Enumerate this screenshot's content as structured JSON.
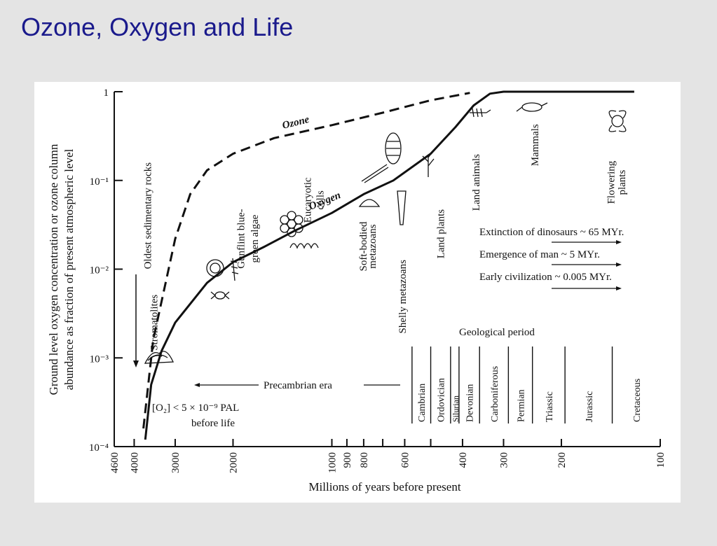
{
  "slide": {
    "title": "Ozone, Oxygen and Life"
  },
  "chart_data": {
    "type": "line",
    "title": "",
    "xlabel": "Millions of years before present",
    "ylabel_line1": "Ground level oxygen concentration or ozone column",
    "ylabel_line2": "abundance as fraction of present atmospheric level",
    "xscale": "log",
    "yscale": "log",
    "xlim": [
      4600,
      100
    ],
    "ylim": [
      0.0001,
      1
    ],
    "x_ticks": [
      4600,
      4000,
      3000,
      2000,
      1000,
      900,
      800,
      700,
      600,
      500,
      400,
      300,
      200,
      100
    ],
    "x_tick_labels": [
      "4600",
      "4000",
      "3000",
      "2000",
      "1000",
      "900",
      "800",
      "600",
      "400",
      "300",
      "200",
      "100"
    ],
    "y_tick_labels": [
      "1",
      "10⁻¹",
      "10⁻²",
      "10⁻³",
      "10⁻⁴"
    ],
    "series": [
      {
        "name": "Ozone",
        "style": "dashed",
        "color": "#111111",
        "points": [
          [
            3750,
            0.00016
          ],
          [
            3500,
            0.0016
          ],
          [
            3000,
            0.022
          ],
          [
            2700,
            0.07
          ],
          [
            2400,
            0.13
          ],
          [
            2000,
            0.2
          ],
          [
            1500,
            0.3
          ],
          [
            1000,
            0.42
          ],
          [
            700,
            0.58
          ],
          [
            500,
            0.8
          ],
          [
            380,
            0.97
          ]
        ]
      },
      {
        "name": "Oxygen",
        "style": "solid",
        "color": "#111111",
        "points": [
          [
            3700,
            0.00012
          ],
          [
            3550,
            0.0005
          ],
          [
            3300,
            0.0012
          ],
          [
            3000,
            0.0025
          ],
          [
            2400,
            0.007
          ],
          [
            2000,
            0.012
          ],
          [
            1600,
            0.018
          ],
          [
            1300,
            0.027
          ],
          [
            1000,
            0.043
          ],
          [
            800,
            0.07
          ],
          [
            650,
            0.1
          ],
          [
            500,
            0.2
          ],
          [
            420,
            0.4
          ],
          [
            370,
            0.7
          ],
          [
            330,
            0.95
          ],
          [
            300,
            1.0
          ],
          [
            120,
            1.0
          ]
        ]
      }
    ],
    "vertical_labels": [
      {
        "text": "Stromatolites",
        "x": 3400,
        "y": 0.0025
      },
      {
        "text": "Oldest sedimentary rocks",
        "x": 3550,
        "y": 0.04
      },
      {
        "text": "Gunflint blue-",
        "x": 1850,
        "y": 0.022
      },
      {
        "text": "green algae",
        "x": 1680,
        "y": 0.022
      },
      {
        "text": "Eucaryotic",
        "x": 1160,
        "y": 0.06
      },
      {
        "text": "cells",
        "x": 1060,
        "y": 0.06
      },
      {
        "text": "Soft-bodied",
        "x": 785,
        "y": 0.018
      },
      {
        "text": "metazoans",
        "x": 735,
        "y": 0.018
      },
      {
        "text": "Shelly metazoans",
        "x": 595,
        "y": 0.0049
      },
      {
        "text": "Land plants",
        "x": 455,
        "y": 0.025
      },
      {
        "text": "Land animals",
        "x": 355,
        "y": 0.095
      },
      {
        "text": "Mammals",
        "x": 235,
        "y": 0.25
      },
      {
        "text": "Flowering",
        "x": 138,
        "y": 0.095
      },
      {
        "text": "plants",
        "x": 128,
        "y": 0.095
      }
    ],
    "annotations": {
      "ozone_label": "Ozone",
      "oxygen_label": "Oxygen",
      "extinction": "Extinction of dinosaurs ~ 65 MYr.",
      "emergence": "Emergence of man ~ 5 MYr.",
      "civilization": "Early civilization ~ 0.005 MYr.",
      "precambrian": "Precambrian era",
      "before_life_1": "[O₂] < 5 × 10⁻⁹ PAL",
      "before_life_2": "before life",
      "geological_period": "Geological period"
    },
    "geological_periods": [
      {
        "name": "Cambrian",
        "start": 570,
        "end": 500
      },
      {
        "name": "Ordovician",
        "start": 500,
        "end": 435
      },
      {
        "name": "Silurian",
        "start": 435,
        "end": 410
      },
      {
        "name": "Devonian",
        "start": 410,
        "end": 355
      },
      {
        "name": "Carboniferous",
        "start": 355,
        "end": 290
      },
      {
        "name": "Permian",
        "start": 290,
        "end": 245
      },
      {
        "name": "Triassic",
        "start": 245,
        "end": 195
      },
      {
        "name": "Jurassic",
        "start": 195,
        "end": 140
      },
      {
        "name": "Cretaceous",
        "start": 140,
        "end": 100
      }
    ],
    "grid": false,
    "legend": "none"
  }
}
